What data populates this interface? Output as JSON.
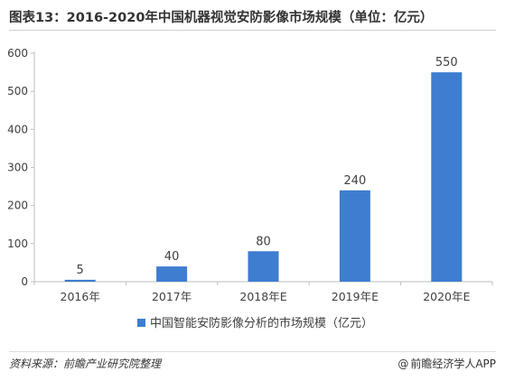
{
  "title": "图表13：2016-2020年中国机器视觉安防影像市场规模（单位：亿元）",
  "source": "资料来源：前瞻产业研究院整理",
  "brand": "前瞻经济学人APP",
  "colors": {
    "bar": "#3e7dd0",
    "axis": "#bfbfbf",
    "text": "#404040"
  },
  "chart_data": {
    "type": "bar",
    "categories": [
      "2016年",
      "2017年",
      "2018年E",
      "2019年E",
      "2020年E"
    ],
    "series": [
      {
        "name": "中国智能安防影像分析的市场规模（亿元）",
        "values": [
          5,
          40,
          80,
          240,
          550
        ]
      }
    ],
    "y_ticks": [
      0,
      100,
      200,
      300,
      400,
      500,
      600
    ],
    "ylim": [
      0,
      600
    ],
    "grid": false,
    "legend": "bottom-center",
    "data_labels": true
  }
}
